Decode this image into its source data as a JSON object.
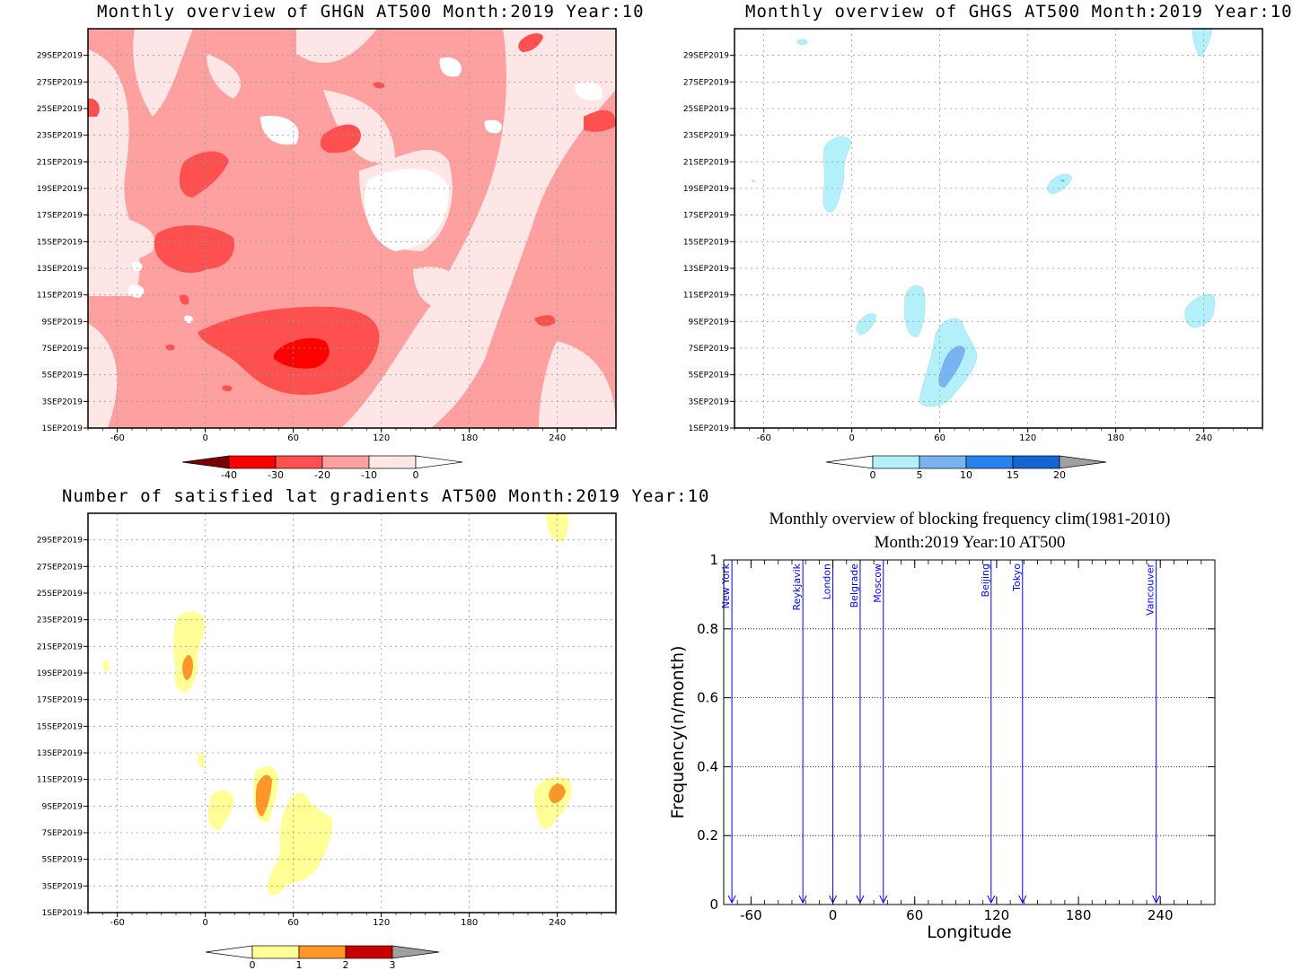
{
  "chart_data": [
    {
      "type": "heatmap",
      "title": "Monthly overview of GHGN AT500 Month:2019 Year:10",
      "x_ticks": [
        "-60",
        "0",
        "60",
        "120",
        "180",
        "240"
      ],
      "y_ticks": [
        "1SEP2019",
        "3SEP2019",
        "5SEP2019",
        "7SEP2019",
        "9SEP2019",
        "11SEP2019",
        "13SEP2019",
        "15SEP2019",
        "17SEP2019",
        "19SEP2019",
        "21SEP2019",
        "23SEP2019",
        "25SEP2019",
        "27SEP2019",
        "29SEP2019"
      ],
      "xlim": [
        -80,
        280
      ],
      "grid": true,
      "colorbar": {
        "labels": [
          "-40",
          "-30",
          "-20",
          "-10",
          "0"
        ],
        "colors": [
          "#7a0000",
          "#ff0000",
          "#ff5050",
          "#ffa0a0",
          "#ffe6e6",
          "#ffffff"
        ]
      }
    },
    {
      "type": "heatmap",
      "title": "Monthly overview of GHGS AT500 Month:2019 Year:10",
      "x_ticks": [
        "-60",
        "0",
        "60",
        "120",
        "180",
        "240"
      ],
      "y_ticks": [
        "1SEP2019",
        "3SEP2019",
        "5SEP2019",
        "7SEP2019",
        "9SEP2019",
        "11SEP2019",
        "13SEP2019",
        "15SEP2019",
        "17SEP2019",
        "19SEP2019",
        "21SEP2019",
        "23SEP2019",
        "25SEP2019",
        "27SEP2019",
        "29SEP2019"
      ],
      "xlim": [
        -80,
        280
      ],
      "grid": true,
      "colorbar": {
        "labels": [
          "0",
          "5",
          "10",
          "15",
          "20"
        ],
        "colors": [
          "#ffffff",
          "#b4f0fa",
          "#78b4f0",
          "#2882f0",
          "#1464d2",
          "#a0a0a0"
        ]
      }
    },
    {
      "type": "heatmap",
      "title": "Number of satisfied lat gradients AT500 Month:2019 Year:10",
      "x_ticks": [
        "-60",
        "0",
        "60",
        "120",
        "180",
        "240"
      ],
      "y_ticks": [
        "1SEP2019",
        "3SEP2019",
        "5SEP2019",
        "7SEP2019",
        "9SEP2019",
        "11SEP2019",
        "13SEP2019",
        "15SEP2019",
        "17SEP2019",
        "19SEP2019",
        "21SEP2019",
        "23SEP2019",
        "25SEP2019",
        "27SEP2019",
        "29SEP2019"
      ],
      "xlim": [
        -80,
        280
      ],
      "grid": true,
      "colorbar": {
        "labels": [
          "0",
          "1",
          "2",
          "3"
        ],
        "colors": [
          "#ffffff",
          "#ffff96",
          "#ff9628",
          "#c80000",
          "#a0a0a0"
        ]
      }
    },
    {
      "type": "line",
      "title_line1": "Monthly overview of blocking frequency clim(1981-2010)",
      "title_line2": "Month:2019 Year:10  AT500",
      "xlabel": "Longitude",
      "ylabel": "Frequency(n/month)",
      "xlim": [
        -80,
        280
      ],
      "ylim": [
        0,
        1
      ],
      "x_ticks": [
        "-60",
        "0",
        "60",
        "120",
        "180",
        "240"
      ],
      "y_ticks": [
        "0",
        "0.2",
        "0.4",
        "0.6",
        "0.8",
        "1"
      ],
      "grid": true,
      "city_markers": [
        {
          "name": "New York",
          "lon": -74
        },
        {
          "name": "Reykjavik",
          "lon": -22
        },
        {
          "name": "London",
          "lon": 0
        },
        {
          "name": "Belgrade",
          "lon": 20
        },
        {
          "name": "Moscow",
          "lon": 37
        },
        {
          "name": "Beijing",
          "lon": 116
        },
        {
          "name": "Tokyo",
          "lon": 139
        },
        {
          "name": "Vancouver",
          "lon": 237
        }
      ],
      "marker_color": "#0000ff"
    }
  ]
}
